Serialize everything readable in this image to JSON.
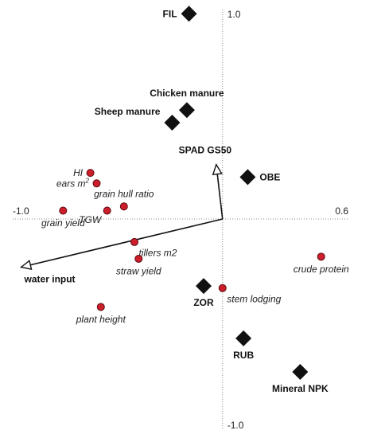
{
  "chart_data": {
    "type": "scatter",
    "title": "",
    "xlabel": "",
    "ylabel": "",
    "xlim": [
      -1.0,
      0.6
    ],
    "ylim": [
      -1.0,
      1.0
    ],
    "x_tick_labels": [
      {
        "value": -1.0,
        "label": "-1.0"
      },
      {
        "value": 0.6,
        "label": "0.6"
      }
    ],
    "y_tick_labels": [
      {
        "value": 1.0,
        "label": "1.0"
      },
      {
        "value": -1.0,
        "label": "-1.0"
      }
    ],
    "grid": false,
    "site_points": [
      {
        "label": "FIL",
        "x": -0.16,
        "y": 0.98,
        "label_side": "left"
      },
      {
        "label": "Chicken manure",
        "x": -0.17,
        "y": 0.52,
        "label_side": "above"
      },
      {
        "label": "Sheep manure",
        "x": -0.24,
        "y": 0.46,
        "label_side": "left-up"
      },
      {
        "label": "OBE",
        "x": 0.12,
        "y": 0.2,
        "label_side": "right"
      },
      {
        "label": "ZOR",
        "x": -0.09,
        "y": -0.32,
        "label_side": "below"
      },
      {
        "label": "RUB",
        "x": 0.1,
        "y": -0.57,
        "label_side": "below"
      },
      {
        "label": "Mineral NPK",
        "x": 0.37,
        "y": -0.73,
        "label_side": "below"
      }
    ],
    "variable_points": [
      {
        "label": "HI",
        "x": -0.63,
        "y": 0.22,
        "label_side": "left"
      },
      {
        "label": "ears m²",
        "x": -0.6,
        "y": 0.17,
        "label_side": "left"
      },
      {
        "label": "grain hull ratio",
        "x": -0.47,
        "y": 0.06,
        "label_side": "above"
      },
      {
        "label": "TGW",
        "x": -0.55,
        "y": 0.04,
        "label_side": "left-below"
      },
      {
        "label": "grain yield",
        "x": -0.76,
        "y": 0.04,
        "label_side": "below"
      },
      {
        "label": "tillers m2",
        "x": -0.42,
        "y": -0.11,
        "label_side": "right-below"
      },
      {
        "label": "straw yield",
        "x": -0.4,
        "y": -0.19,
        "label_side": "below"
      },
      {
        "label": "crude protein",
        "x": 0.47,
        "y": -0.18,
        "label_side": "below"
      },
      {
        "label": "stem lodging",
        "x": 0.0,
        "y": -0.33,
        "label_side": "right-below"
      },
      {
        "label": "plant height",
        "x": -0.58,
        "y": -0.42,
        "label_side": "below"
      }
    ],
    "environmental_vectors": [
      {
        "label": "SPAD GS50",
        "x": -0.03,
        "y": 0.26,
        "label_side": "above"
      },
      {
        "label": "water input",
        "x": -0.96,
        "y": -0.23,
        "label_side": "below"
      }
    ],
    "colors": {
      "site_marker": "#111111",
      "variable_marker": "#cc1f2b",
      "variable_marker_stroke": "#5a0a10",
      "vector": "#111111"
    }
  }
}
